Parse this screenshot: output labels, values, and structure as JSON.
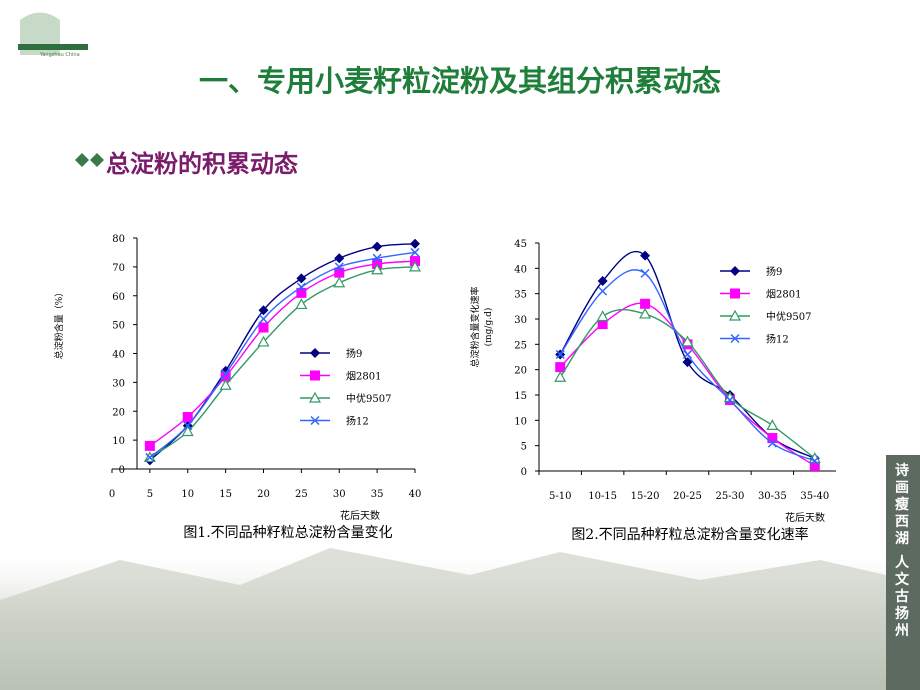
{
  "slide": {
    "title": "一、专用小麦籽粒淀粉及其组分积累动态",
    "subtitle": "总淀粉的积累动态",
    "side_text": [
      "诗画瘦西湖",
      "人文古扬州"
    ],
    "logo_text": "Yangzhou China"
  },
  "chart_data": [
    {
      "type": "line",
      "caption": "图1.不同品种籽粒总淀粉含量变化",
      "ylabel": [
        "总淀粉含量（%）"
      ],
      "xlabel": "花后天数",
      "x": [
        5,
        10,
        15,
        20,
        25,
        30,
        35,
        40
      ],
      "xlim": [
        0,
        40
      ],
      "xticks": [
        0,
        5,
        10,
        15,
        20,
        25,
        30,
        35,
        40
      ],
      "ylim": [
        0,
        80
      ],
      "yticks": [
        0,
        10,
        20,
        30,
        40,
        50,
        60,
        70,
        80
      ],
      "series": [
        {
          "name": "扬9",
          "color": "#000080",
          "marker": "diamond",
          "values": [
            3,
            15,
            34,
            55,
            66,
            73,
            77,
            78
          ]
        },
        {
          "name": "烟2801",
          "color": "#ff00ff",
          "marker": "square",
          "values": [
            8,
            18,
            32,
            49,
            61,
            68,
            71,
            72
          ]
        },
        {
          "name": "中优9507",
          "color": "#339966",
          "marker": "triangle",
          "values": [
            4,
            13,
            29,
            44,
            57,
            64.5,
            69,
            70
          ]
        },
        {
          "name": "扬12",
          "color": "#3366ff",
          "marker": "x",
          "values": [
            4,
            15,
            33,
            52,
            63,
            70,
            73,
            75
          ]
        }
      ]
    },
    {
      "type": "line",
      "caption": "图2.不同品种籽粒总淀粉含量变化速率",
      "ylabel": [
        "总淀粉含量变化速率",
        "(mg/g.d)"
      ],
      "xlabel": "花后天数",
      "categories": [
        "5-10",
        "10-15",
        "15-20",
        "20-25",
        "25-30",
        "30-35",
        "35-40"
      ],
      "ylim": [
        0,
        45
      ],
      "yticks": [
        0,
        5,
        10,
        15,
        20,
        25,
        30,
        35,
        40,
        45
      ],
      "series": [
        {
          "name": "扬9",
          "color": "#000080",
          "marker": "diamond",
          "values": [
            23,
            37.5,
            42.5,
            21.5,
            15,
            6.5,
            2.5
          ]
        },
        {
          "name": "烟2801",
          "color": "#ff00ff",
          "marker": "square",
          "values": [
            20.5,
            29,
            33,
            25,
            14,
            6.5,
            1
          ]
        },
        {
          "name": "中优9507",
          "color": "#339966",
          "marker": "triangle",
          "values": [
            18.5,
            30.5,
            31,
            25.5,
            14.5,
            9,
            2.5
          ]
        },
        {
          "name": "扬12",
          "color": "#3366ff",
          "marker": "x",
          "values": [
            23,
            35.5,
            39,
            23,
            14,
            5.5,
            2
          ]
        }
      ]
    }
  ]
}
